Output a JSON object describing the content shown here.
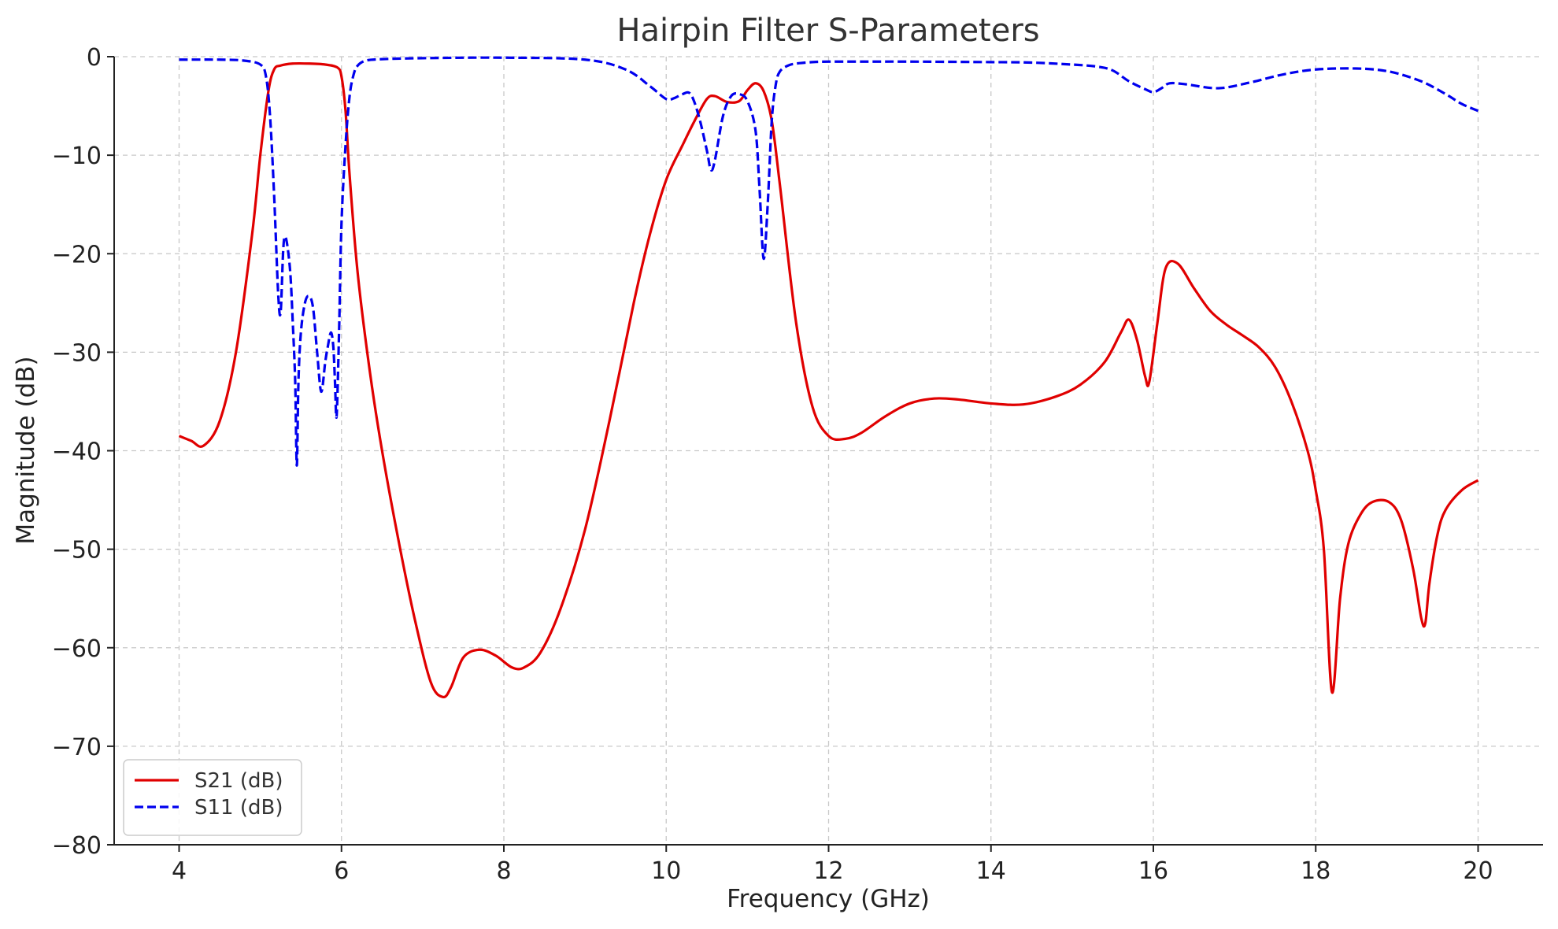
{
  "chart_data": {
    "type": "line",
    "title": "Hairpin Filter S-Parameters",
    "xlabel": "Frequency (GHz)",
    "ylabel": "Magnitude (dB)",
    "xlim": [
      3.2,
      20.8
    ],
    "ylim": [
      -80,
      0
    ],
    "xticks": [
      4,
      6,
      8,
      10,
      12,
      14,
      16,
      18,
      20
    ],
    "yticks": [
      0,
      -10,
      -20,
      -30,
      -40,
      -50,
      -60,
      -70,
      -80
    ],
    "xtick_labels": [
      "4",
      "6",
      "8",
      "10",
      "12",
      "14",
      "16",
      "18",
      "20"
    ],
    "ytick_labels": [
      "0",
      "−10",
      "−20",
      "−30",
      "−40",
      "−50",
      "−60",
      "−70",
      "−80"
    ],
    "grid": true,
    "legend_position": "bottom-left",
    "series": [
      {
        "name": "S21 (dB)",
        "color": "#e00000",
        "dash": "solid",
        "x": [
          4.0,
          4.15,
          4.3,
          4.5,
          4.7,
          4.9,
          5.0,
          5.1,
          5.17,
          5.25,
          5.4,
          5.6,
          5.8,
          5.95,
          6.0,
          6.05,
          6.1,
          6.2,
          6.35,
          6.5,
          6.7,
          6.9,
          7.1,
          7.25,
          7.35,
          7.5,
          7.7,
          7.9,
          8.1,
          8.25,
          8.45,
          8.7,
          9.0,
          9.3,
          9.6,
          9.8,
          10.0,
          10.2,
          10.35,
          10.5,
          10.6,
          10.75,
          10.9,
          11.0,
          11.1,
          11.2,
          11.3,
          11.4,
          11.6,
          11.8,
          12.0,
          12.2,
          12.4,
          12.7,
          13.0,
          13.3,
          13.6,
          14.0,
          14.4,
          14.8,
          15.1,
          15.4,
          15.6,
          15.7,
          15.8,
          15.9,
          15.95,
          16.05,
          16.15,
          16.3,
          16.5,
          16.7,
          16.9,
          17.1,
          17.3,
          17.5,
          17.7,
          17.9,
          18.0,
          18.1,
          18.2,
          18.3,
          18.4,
          18.55,
          18.7,
          18.9,
          19.05,
          19.2,
          19.3,
          19.35,
          19.4,
          19.5,
          19.6,
          19.8,
          20.0
        ],
        "y": [
          -38.5,
          -39.0,
          -39.5,
          -37.0,
          -30.0,
          -18.0,
          -10.0,
          -3.5,
          -1.3,
          -0.9,
          -0.7,
          -0.7,
          -0.8,
          -1.1,
          -2.0,
          -5.5,
          -12.0,
          -22.0,
          -32.0,
          -40.0,
          -49.0,
          -57.0,
          -63.5,
          -65.0,
          -64.0,
          -61.0,
          -60.2,
          -60.8,
          -62.0,
          -62.0,
          -60.5,
          -56.0,
          -48.0,
          -37.0,
          -25.0,
          -18.0,
          -12.5,
          -9.0,
          -6.5,
          -4.3,
          -4.0,
          -4.6,
          -4.5,
          -3.4,
          -2.7,
          -3.5,
          -6.5,
          -13.0,
          -27.0,
          -35.5,
          -38.5,
          -38.8,
          -38.2,
          -36.5,
          -35.2,
          -34.7,
          -34.8,
          -35.2,
          -35.3,
          -34.5,
          -33.3,
          -31.0,
          -28.0,
          -26.7,
          -28.8,
          -32.5,
          -33.0,
          -27.0,
          -21.5,
          -21.0,
          -23.5,
          -25.8,
          -27.2,
          -28.3,
          -29.5,
          -31.5,
          -35.0,
          -40.0,
          -44.0,
          -50.0,
          -64.5,
          -55.0,
          -49.5,
          -46.5,
          -45.2,
          -45.2,
          -47.0,
          -52.0,
          -57.0,
          -57.5,
          -53.5,
          -48.5,
          -46.0,
          -44.0,
          -43.0
        ]
      },
      {
        "name": "S11 (dB)",
        "color": "#0000ee",
        "dash": "dashed",
        "x": [
          4.0,
          4.5,
          4.8,
          5.0,
          5.07,
          5.12,
          5.17,
          5.22,
          5.25,
          5.28,
          5.3,
          5.33,
          5.37,
          5.4,
          5.43,
          5.45,
          5.47,
          5.5,
          5.55,
          5.6,
          5.65,
          5.7,
          5.75,
          5.8,
          5.83,
          5.87,
          5.9,
          5.92,
          5.94,
          5.97,
          6.0,
          6.05,
          6.1,
          6.15,
          6.2,
          6.3,
          6.5,
          7.0,
          8.0,
          9.0,
          9.5,
          9.8,
          10.0,
          10.1,
          10.2,
          10.3,
          10.4,
          10.5,
          10.55,
          10.6,
          10.7,
          10.8,
          10.9,
          11.0,
          11.1,
          11.15,
          11.2,
          11.25,
          11.3,
          11.35,
          11.4,
          11.5,
          11.6,
          11.8,
          12.0,
          12.5,
          13.0,
          14.0,
          14.5,
          15.0,
          15.3,
          15.5,
          15.7,
          15.9,
          16.0,
          16.1,
          16.2,
          16.4,
          16.8,
          17.2,
          17.6,
          18.0,
          18.5,
          18.9,
          19.3,
          19.6,
          19.8,
          20.0
        ],
        "y": [
          -0.3,
          -0.3,
          -0.4,
          -0.8,
          -2.0,
          -6.0,
          -14.0,
          -24.0,
          -26.0,
          -20.0,
          -18.3,
          -19.0,
          -22.0,
          -27.0,
          -33.0,
          -41.5,
          -33.0,
          -28.0,
          -25.0,
          -24.3,
          -25.5,
          -30.0,
          -34.0,
          -31.0,
          -29.5,
          -28.0,
          -29.5,
          -33.0,
          -36.5,
          -28.0,
          -17.0,
          -9.0,
          -4.0,
          -1.8,
          -0.9,
          -0.4,
          -0.25,
          -0.15,
          -0.1,
          -0.3,
          -1.3,
          -3.0,
          -4.3,
          -4.2,
          -3.8,
          -3.8,
          -6.0,
          -9.5,
          -11.5,
          -10.5,
          -6.0,
          -4.0,
          -3.8,
          -4.5,
          -7.5,
          -13.5,
          -20.5,
          -15.0,
          -6.5,
          -2.8,
          -1.5,
          -0.9,
          -0.7,
          -0.55,
          -0.5,
          -0.5,
          -0.5,
          -0.55,
          -0.6,
          -0.8,
          -1.0,
          -1.4,
          -2.5,
          -3.3,
          -3.6,
          -3.2,
          -2.7,
          -2.8,
          -3.2,
          -2.6,
          -1.8,
          -1.3,
          -1.2,
          -1.5,
          -2.5,
          -3.8,
          -4.8,
          -5.5
        ]
      }
    ]
  }
}
